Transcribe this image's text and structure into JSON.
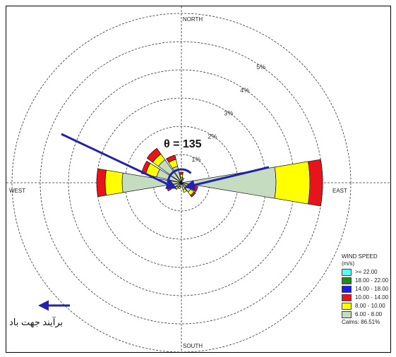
{
  "chart_data": {
    "type": "wind-rose",
    "compass": {
      "north": "NORTH",
      "south": "SOUTH",
      "east": "EAST",
      "west": "WEST"
    },
    "rings": [
      "1%",
      "2%",
      "3%",
      "4%",
      "5%"
    ],
    "legend": {
      "title_line1": "WIND SPEED",
      "title_line2": "(m/s)",
      "classes": [
        {
          "label": ">= 22.00",
          "color": "#55ffff"
        },
        {
          "label": "18.00 - 22.00",
          "color": "#1f8a1f"
        },
        {
          "label": "14.00 - 18.00",
          "color": "#1a1aee"
        },
        {
          "label": "10.00 - 14.00",
          "color": "#e8141b"
        },
        {
          "label": "8.00 - 10.00",
          "color": "#ffff00"
        },
        {
          "label": "6.00 - 8.00",
          "color": "#c5dcc0"
        }
      ],
      "calms": "Calms: 86.51%"
    },
    "petals": [
      {
        "direction_deg": 90,
        "bands": [
          {
            "class": "6.00 - 8.00",
            "to": 3.35
          },
          {
            "class": "8.00 - 10.00",
            "to": 4.55
          },
          {
            "class": "10.00 - 14.00",
            "to": 5.0
          }
        ]
      },
      {
        "direction_deg": 270,
        "bands": [
          {
            "class": "6.00 - 8.00",
            "to": 2.1
          },
          {
            "class": "8.00 - 10.00",
            "to": 2.7
          },
          {
            "class": "10.00 - 14.00",
            "to": 3.0
          }
        ]
      },
      {
        "direction_deg": 292.5,
        "bands": [
          {
            "class": "6.00 - 8.00",
            "to": 0.9
          },
          {
            "class": "8.00 - 10.00",
            "to": 1.3
          },
          {
            "class": "10.00 - 14.00",
            "to": 1.45
          }
        ]
      },
      {
        "direction_deg": 315,
        "bands": [
          {
            "class": "6.00 - 8.00",
            "to": 1.0
          },
          {
            "class": "8.00 - 10.00",
            "to": 1.25
          },
          {
            "class": "10.00 - 14.00",
            "to": 1.5
          }
        ]
      },
      {
        "direction_deg": 337.5,
        "bands": [
          {
            "class": "6.00 - 8.00",
            "to": 0.6
          },
          {
            "class": "8.00 - 10.00",
            "to": 0.85
          },
          {
            "class": "10.00 - 14.00",
            "to": 1.0
          }
        ]
      },
      {
        "direction_deg": 0,
        "bands": [
          {
            "class": "6.00 - 8.00",
            "to": 0.2
          },
          {
            "class": "8.00 - 10.00",
            "to": 0.3
          },
          {
            "class": "10.00 - 14.00",
            "to": 0.38
          }
        ]
      },
      {
        "direction_deg": 22.5,
        "bands": [
          {
            "class": "6.00 - 8.00",
            "to": 0.12
          },
          {
            "class": "8.00 - 10.00",
            "to": 0.18
          }
        ]
      },
      {
        "direction_deg": 112.5,
        "bands": [
          {
            "class": "6.00 - 8.00",
            "to": 0.35
          },
          {
            "class": "8.00 - 10.00",
            "to": 0.48
          },
          {
            "class": "10.00 - 14.00",
            "to": 0.6
          }
        ]
      },
      {
        "direction_deg": 135,
        "bands": [
          {
            "class": "6.00 - 8.00",
            "to": 0.4
          },
          {
            "class": "8.00 - 10.00",
            "to": 0.55
          },
          {
            "class": "10.00 - 14.00",
            "to": 0.62
          }
        ]
      },
      {
        "direction_deg": 157.5,
        "bands": [
          {
            "class": "6.00 - 8.00",
            "to": 0.25
          },
          {
            "class": "8.00 - 10.00",
            "to": 0.35
          }
        ]
      },
      {
        "direction_deg": 202.5,
        "bands": [
          {
            "class": "6.00 - 8.00",
            "to": 0.15
          },
          {
            "class": "8.00 - 10.00",
            "to": 0.22
          }
        ]
      },
      {
        "direction_deg": 225,
        "bands": [
          {
            "class": "6.00 - 8.00",
            "to": 0.2
          },
          {
            "class": "8.00 - 10.00",
            "to": 0.3
          }
        ]
      },
      {
        "direction_deg": 247.5,
        "bands": [
          {
            "class": "6.00 - 8.00",
            "to": 0.3
          },
          {
            "class": "8.00 - 10.00",
            "to": 0.45
          },
          {
            "class": "10.00 - 14.00",
            "to": 0.55
          }
        ]
      }
    ],
    "annotations": {
      "theta_label": "θ = 135",
      "theta_deg": 135,
      "arrow_color": "#2222aa",
      "caption": "برآیند جهت باد"
    }
  }
}
